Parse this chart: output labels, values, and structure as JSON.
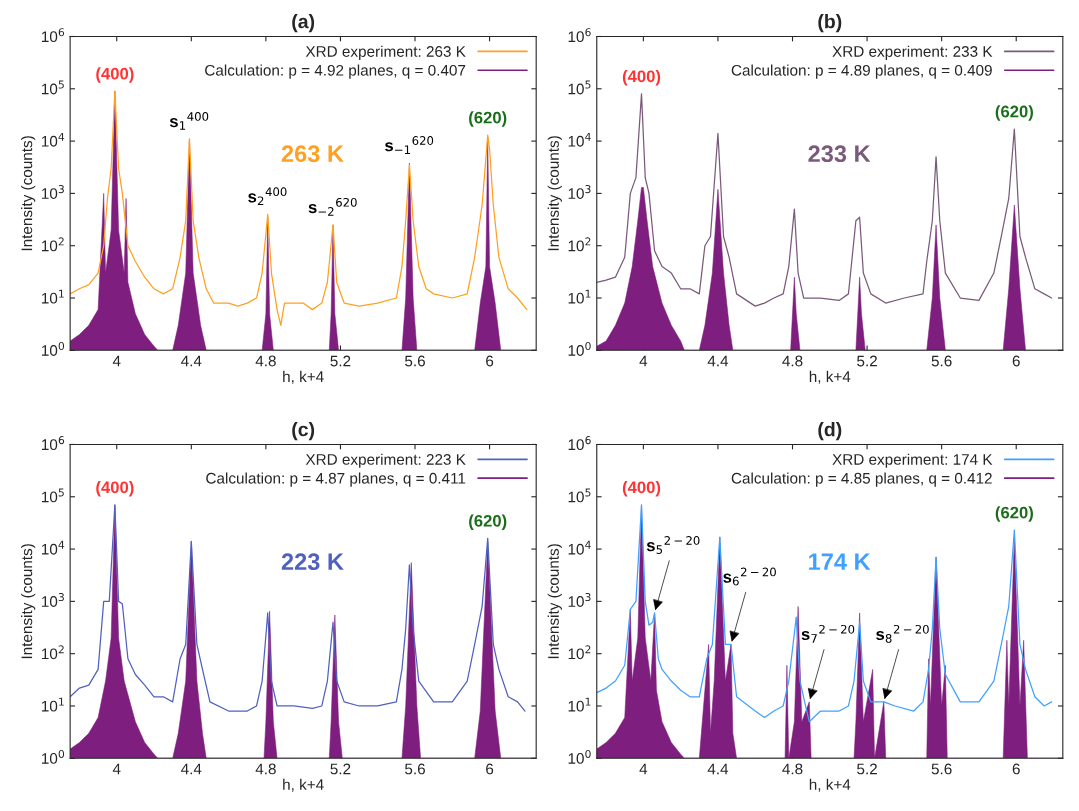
{
  "chart_data": [
    {
      "type": "line",
      "title": "(a)",
      "xlabel": "h, k+4",
      "ylabel": "Intensity (counts)",
      "log": "y",
      "legend": "top right",
      "grid": false,
      "xlim": [
        3.75,
        6.25
      ],
      "xticks": [
        4,
        4.4,
        4.8,
        5.2,
        5.6,
        6
      ],
      "ylim": [
        1,
        1000000
      ],
      "yticks": [
        {
          "value": 1,
          "label": "10$^{0}$"
        },
        {
          "value": 10,
          "label": "10$^{1}$"
        },
        {
          "value": 100,
          "label": "10$^{2}$"
        },
        {
          "value": 1000,
          "label": "10$^{3}$"
        },
        {
          "value": 10000,
          "label": "10$^{4}$"
        },
        {
          "value": 100000,
          "label": "10$^{5}$"
        },
        {
          "value": 1000000,
          "label": "10$^{6}$"
        }
      ],
      "series": [
        {
          "name": "XRD experiment: 263 K",
          "color": "#ffa020",
          "x": [
            3.75,
            3.8,
            3.85,
            3.9,
            3.93,
            3.95,
            3.97,
            3.99,
            4.01,
            4.03,
            4.06,
            4.1,
            4.15,
            4.2,
            4.25,
            4.3,
            4.34,
            4.37,
            4.39,
            4.41,
            4.44,
            4.48,
            4.52,
            4.6,
            4.65,
            4.7,
            4.75,
            4.78,
            4.81,
            4.83,
            4.86,
            4.88,
            4.9,
            5.0,
            5.05,
            5.1,
            5.13,
            5.16,
            5.18,
            5.22,
            5.3,
            5.4,
            5.5,
            5.53,
            5.55,
            5.57,
            5.59,
            5.62,
            5.66,
            5.7,
            5.8,
            5.88,
            5.92,
            5.96,
            5.99,
            6.0,
            6.02,
            6.05,
            6.1,
            6.15,
            6.2
          ],
          "values": [
            12,
            15,
            18,
            30,
            100,
            800,
            3000,
            90000,
            3000,
            1000,
            100,
            50,
            25,
            15,
            12,
            15,
            60,
            300,
            11000,
            300,
            60,
            15,
            8,
            8,
            7,
            8,
            10,
            30,
            400,
            30,
            6,
            3,
            8,
            8,
            6,
            8,
            20,
            250,
            20,
            8,
            7,
            8,
            10,
            40,
            300,
            3500,
            300,
            40,
            15,
            12,
            10,
            12,
            60,
            600,
            13000,
            7000,
            600,
            60,
            15,
            10,
            6
          ]
        },
        {
          "name": "Calculation: p = 4.92 planes, q = 0.407",
          "type": "area",
          "color": "#7e1e7e",
          "x": [
            3.75,
            3.8,
            3.85,
            3.9,
            3.93,
            3.94,
            3.97,
            3.99,
            4.01,
            4.04,
            4.05,
            4.06,
            4.1,
            4.15,
            4.2,
            4.22,
            4.3,
            4.33,
            4.37,
            4.39,
            4.41,
            4.45,
            4.48,
            4.78,
            4.8,
            4.81,
            4.82,
            4.84,
            5.14,
            5.15,
            5.16,
            5.17,
            5.19,
            5.53,
            5.55,
            5.57,
            5.59,
            5.61,
            5.92,
            5.95,
            5.98,
            5.99,
            6.0,
            6.03,
            6.06,
            6.25
          ],
          "values": [
            1.5,
            2,
            3,
            6,
            1000,
            30,
            200,
            90000,
            200,
            30,
            800,
            20,
            5,
            2,
            1.2,
            1,
            1,
            3,
            30,
            11000,
            30,
            3,
            1,
            1,
            5,
            350,
            5,
            1,
            1,
            5,
            250,
            5,
            1,
            1,
            10,
            3800,
            10,
            1,
            1,
            8,
            40,
            12000,
            40,
            8,
            1,
            1
          ]
        }
      ],
      "annotations": [
        {
          "text": "(400)",
          "x": 3.99,
          "y": 90000
        },
        {
          "text": "s$_{1}$$^{400}$",
          "x": 4.39,
          "y": 11000
        },
        {
          "text": "s$_{2}$$^{400}$",
          "x": 4.81,
          "y": 400
        },
        {
          "text": "s$_{−2}$$^{620}$",
          "x": 5.16,
          "y": 250
        },
        {
          "text": "s$_{−1}$$^{620}$",
          "x": 5.57,
          "y": 3800
        },
        {
          "text": "(620)",
          "x": 5.99,
          "y": 13000
        },
        "263 K"
      ]
    },
    {
      "type": "line",
      "title": "(b)",
      "xlabel": "h, k+4",
      "ylabel": "Intensity (counts)",
      "log": "y",
      "legend": "top right",
      "grid": false,
      "xlim": [
        3.75,
        6.25
      ],
      "xticks": [
        4,
        4.4,
        4.8,
        5.2,
        5.6,
        6
      ],
      "ylim": [
        1,
        1000000
      ],
      "yticks": [
        {
          "value": 1,
          "label": "10$^{0}$"
        },
        {
          "value": 10,
          "label": "10$^{1}$"
        },
        {
          "value": 100,
          "label": "10$^{2}$"
        },
        {
          "value": 1000,
          "label": "10$^{3}$"
        },
        {
          "value": 10000,
          "label": "10$^{4}$"
        },
        {
          "value": 100000,
          "label": "10$^{5}$"
        },
        {
          "value": 1000000,
          "label": "10$^{6}$"
        }
      ],
      "series": [
        {
          "name": "XRD experiment: 233 K",
          "color": "#7a5a7a",
          "x": [
            3.75,
            3.8,
            3.85,
            3.9,
            3.93,
            3.96,
            3.99,
            4.01,
            4.03,
            4.06,
            4.1,
            4.15,
            4.2,
            4.25,
            4.3,
            4.33,
            4.36,
            4.4,
            4.43,
            4.46,
            4.5,
            4.6,
            4.65,
            4.7,
            4.75,
            4.78,
            4.81,
            4.83,
            4.86,
            4.95,
            5.05,
            5.1,
            5.14,
            5.16,
            5.18,
            5.22,
            5.3,
            5.4,
            5.5,
            5.52,
            5.55,
            5.57,
            5.59,
            5.62,
            5.7,
            5.8,
            5.88,
            5.92,
            5.96,
            5.99,
            6.02,
            6.05,
            6.1,
            6.15,
            6.19
          ],
          "values": [
            20,
            22,
            25,
            60,
            1000,
            2000,
            80000,
            2000,
            1000,
            80,
            40,
            30,
            15,
            15,
            12,
            100,
            150,
            14000,
            150,
            60,
            12,
            7,
            8,
            10,
            12,
            40,
            500,
            30,
            10,
            10,
            9,
            12,
            300,
            350,
            30,
            12,
            8,
            10,
            12,
            50,
            300,
            5000,
            300,
            30,
            10,
            9,
            30,
            150,
            800,
            17000,
            150,
            60,
            15,
            12,
            10
          ]
        },
        {
          "name": "Calculation: p = 4.89 planes, q = 0.409",
          "type": "area",
          "color": "#7e1e7e",
          "x": [
            3.75,
            3.8,
            3.85,
            3.9,
            3.94,
            3.97,
            3.99,
            4.0,
            4.02,
            4.05,
            4.1,
            4.15,
            4.2,
            4.22,
            4.3,
            4.33,
            4.37,
            4.4,
            4.43,
            4.46,
            4.48,
            4.79,
            4.8,
            4.81,
            4.82,
            4.84,
            5.14,
            5.15,
            5.16,
            5.17,
            5.19,
            5.52,
            5.55,
            5.57,
            5.59,
            5.62,
            5.93,
            5.96,
            5.99,
            6.02,
            6.05,
            6.25
          ],
          "values": [
            1.2,
            1.5,
            3,
            8,
            40,
            300,
            1300,
            1300,
            300,
            40,
            8,
            3,
            1.5,
            1,
            1,
            3,
            30,
            1200,
            30,
            3,
            1,
            1,
            5,
            25,
            5,
            1,
            1,
            5,
            25,
            5,
            1,
            1,
            10,
            250,
            10,
            1,
            1,
            15,
            600,
            15,
            1,
            1
          ]
        }
      ],
      "annotations": [
        {
          "text": "(400)",
          "x": 3.99,
          "y": 80000
        },
        {
          "text": "(620)",
          "x": 5.99,
          "y": 17000
        },
        "233 K"
      ]
    },
    {
      "type": "line",
      "title": "(c)",
      "xlabel": "h, k+4",
      "ylabel": "Intensity (counts)",
      "log": "y",
      "legend": "top right",
      "grid": false,
      "xlim": [
        3.75,
        6.25
      ],
      "xticks": [
        4,
        4.4,
        4.8,
        5.2,
        5.6,
        6
      ],
      "ylim": [
        1,
        1000000
      ],
      "yticks": [
        {
          "value": 1,
          "label": "10$^{0}$"
        },
        {
          "value": 10,
          "label": "10$^{1}$"
        },
        {
          "value": 100,
          "label": "10$^{2}$"
        },
        {
          "value": 1000,
          "label": "10$^{3}$"
        },
        {
          "value": 10000,
          "label": "10$^{4}$"
        },
        {
          "value": 100000,
          "label": "10$^{5}$"
        },
        {
          "value": 1000000,
          "label": "10$^{6}$"
        }
      ],
      "series": [
        {
          "name": "XRD experiment: 223 K",
          "color": "#5060c0",
          "x": [
            3.75,
            3.8,
            3.85,
            3.9,
            3.93,
            3.96,
            3.99,
            4.01,
            4.03,
            4.06,
            4.1,
            4.15,
            4.2,
            4.25,
            4.3,
            4.34,
            4.37,
            4.4,
            4.43,
            4.46,
            4.5,
            4.6,
            4.65,
            4.7,
            4.75,
            4.78,
            4.81,
            4.83,
            4.86,
            4.95,
            5.05,
            5.1,
            5.13,
            5.16,
            5.18,
            5.22,
            5.3,
            5.4,
            5.5,
            5.53,
            5.55,
            5.57,
            5.59,
            5.62,
            5.7,
            5.8,
            5.88,
            5.92,
            5.96,
            5.99,
            6.02,
            6.05,
            6.1,
            6.15,
            6.19
          ],
          "values": [
            15,
            22,
            25,
            50,
            1000,
            1000,
            70000,
            1000,
            900,
            80,
            40,
            25,
            15,
            15,
            12,
            80,
            150,
            14000,
            150,
            50,
            12,
            8,
            8,
            8,
            10,
            30,
            600,
            30,
            10,
            10,
            9,
            10,
            30,
            400,
            30,
            12,
            10,
            10,
            12,
            50,
            300,
            5000,
            300,
            30,
            12,
            12,
            30,
            150,
            800,
            16000,
            150,
            50,
            15,
            12,
            8
          ]
        },
        {
          "name": "Calculation: p = 4.87 planes, q = 0.411",
          "type": "area",
          "color": "#7e1e7e",
          "x": [
            3.75,
            3.8,
            3.85,
            3.9,
            3.94,
            3.97,
            3.99,
            4.01,
            4.04,
            4.1,
            4.15,
            4.2,
            4.22,
            4.3,
            4.33,
            4.37,
            4.4,
            4.43,
            4.46,
            4.48,
            4.79,
            4.8,
            4.82,
            4.84,
            4.86,
            5.14,
            5.15,
            5.17,
            5.19,
            5.21,
            5.53,
            5.55,
            5.58,
            5.61,
            5.63,
            5.92,
            5.95,
            5.99,
            6.03,
            6.06,
            6.25
          ],
          "values": [
            1.5,
            2,
            3,
            6,
            30,
            200,
            70000,
            200,
            30,
            5,
            2,
            1.2,
            1,
            1,
            3,
            30,
            14000,
            30,
            3,
            1,
            1,
            5,
            650,
            5,
            1,
            1,
            5,
            550,
            5,
            1,
            1,
            10,
            5500,
            10,
            1,
            1,
            8,
            14000,
            8,
            1,
            1
          ]
        }
      ],
      "annotations": [
        {
          "text": "(400)",
          "x": 3.99,
          "y": 70000
        },
        {
          "text": "(620)",
          "x": 5.99,
          "y": 16000
        },
        "223 K"
      ]
    },
    {
      "type": "line",
      "title": "(d)",
      "xlabel": "h, k+4",
      "ylabel": "Intensity (counts)",
      "log": "y",
      "legend": "top right",
      "grid": false,
      "xlim": [
        3.75,
        6.25
      ],
      "xticks": [
        4,
        4.4,
        4.8,
        5.2,
        5.6,
        6
      ],
      "ylim": [
        1,
        1000000
      ],
      "yticks": [
        {
          "value": 1,
          "label": "10$^{0}$"
        },
        {
          "value": 10,
          "label": "10$^{1}$"
        },
        {
          "value": 100,
          "label": "10$^{2}$"
        },
        {
          "value": 1000,
          "label": "10$^{3}$"
        },
        {
          "value": 10000,
          "label": "10$^{4}$"
        },
        {
          "value": 100000,
          "label": "10$^{5}$"
        },
        {
          "value": 1000000,
          "label": "10$^{6}$"
        }
      ],
      "series": [
        {
          "name": "XRD experiment: 174 K",
          "color": "#40a0ff",
          "x": [
            3.75,
            3.8,
            3.85,
            3.9,
            3.93,
            3.96,
            3.99,
            4.01,
            4.03,
            4.05,
            4.06,
            4.08,
            4.1,
            4.15,
            4.2,
            4.25,
            4.3,
            4.34,
            4.37,
            4.41,
            4.44,
            4.47,
            4.5,
            4.6,
            4.65,
            4.7,
            4.75,
            4.78,
            4.82,
            4.84,
            4.87,
            4.89,
            4.95,
            5.05,
            5.1,
            5.13,
            5.16,
            5.18,
            5.22,
            5.29,
            5.35,
            5.45,
            5.5,
            5.53,
            5.55,
            5.57,
            5.59,
            5.62,
            5.7,
            5.8,
            5.88,
            5.92,
            5.96,
            5.99,
            6.02,
            6.05,
            6.1,
            6.15,
            6.19
          ],
          "values": [
            18,
            22,
            30,
            60,
            700,
            1000,
            70000,
            1000,
            350,
            400,
            600,
            80,
            50,
            30,
            20,
            15,
            15,
            80,
            150,
            17000,
            150,
            150,
            15,
            8,
            6,
            8,
            10,
            30,
            500,
            30,
            10,
            5,
            8,
            8,
            10,
            30,
            400,
            30,
            12,
            12,
            10,
            8,
            12,
            50,
            300,
            7000,
            300,
            40,
            12,
            12,
            30,
            150,
            800,
            23000,
            150,
            50,
            15,
            10,
            12
          ]
        },
        {
          "name": "Calculation: p = 4.85 planes, q = 0.412",
          "type": "area",
          "color": "#7e1e7e",
          "x": [
            3.75,
            3.8,
            3.85,
            3.9,
            3.93,
            3.94,
            3.97,
            3.99,
            4.01,
            4.04,
            4.06,
            4.07,
            4.1,
            4.15,
            4.2,
            4.22,
            4.3,
            4.35,
            4.36,
            4.38,
            4.41,
            4.44,
            4.47,
            4.48,
            4.5,
            4.76,
            4.77,
            4.78,
            4.81,
            4.83,
            4.85,
            4.89,
            4.9,
            5.13,
            5.14,
            5.16,
            5.18,
            5.23,
            5.24,
            5.29,
            5.3,
            5.52,
            5.53,
            5.54,
            5.57,
            5.6,
            5.62,
            5.63,
            5.93,
            5.95,
            5.96,
            5.99,
            6.02,
            6.04,
            6.06,
            6.25
          ],
          "values": [
            1.5,
            2,
            3,
            6,
            700,
            30,
            200,
            70000,
            200,
            30,
            600,
            20,
            5,
            2,
            1.2,
            1,
            1,
            150,
            3,
            30,
            17000,
            30,
            150,
            3,
            1,
            1,
            60,
            1,
            5,
            800,
            5,
            12,
            1,
            1,
            5,
            600,
            5,
            50,
            1,
            12,
            1,
            1,
            80,
            10,
            7000,
            10,
            60,
            1,
            1,
            180,
            10,
            17000,
            10,
            180,
            1,
            1
          ]
        }
      ],
      "annotations": [
        {
          "text": "(400)",
          "x": 3.99,
          "y": 70000
        },
        {
          "text": "(620)",
          "x": 5.99,
          "y": 23000
        },
        {
          "text": "s$_{5}$$^{2−20}$",
          "x": 4.06,
          "y": 600
        },
        {
          "text": "s$_{6}$$^{2−20}$",
          "x": 4.47,
          "y": 150
        },
        {
          "text": "s$_{7}$$^{2−20}$",
          "x": 4.89,
          "y": 12
        },
        {
          "text": "s$_{8}$$^{2−20}$",
          "x": 5.29,
          "y": 12
        },
        "174 K"
      ]
    }
  ]
}
